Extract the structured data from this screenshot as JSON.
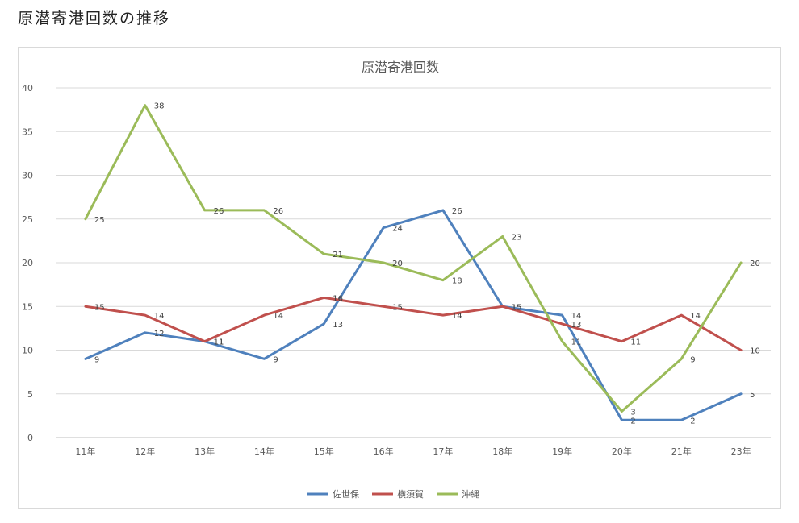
{
  "page": {
    "heading": "原潜寄港回数の推移"
  },
  "chart_data": {
    "type": "line",
    "title": "原潜寄港回数",
    "xlabel": "",
    "ylabel": "",
    "categories": [
      "11年",
      "12年",
      "13年",
      "14年",
      "15年",
      "16年",
      "17年",
      "18年",
      "19年",
      "20年",
      "21年",
      "23年"
    ],
    "ylim": [
      0,
      40
    ],
    "yticks": [
      0,
      5,
      10,
      15,
      20,
      25,
      30,
      35,
      40
    ],
    "grid": true,
    "legend_position": "bottom",
    "series": [
      {
        "name": "佐世保",
        "color": "#4f81bd",
        "values": [
          9,
          12,
          11,
          9,
          13,
          24,
          26,
          15,
          14,
          2,
          2,
          5
        ]
      },
      {
        "name": "横須賀",
        "color": "#c0504d",
        "values": [
          15,
          14,
          11,
          14,
          16,
          15,
          14,
          15,
          13,
          11,
          14,
          10
        ]
      },
      {
        "name": "沖縄",
        "color": "#9bbb59",
        "values": [
          25,
          38,
          26,
          26,
          21,
          20,
          18,
          23,
          11,
          3,
          9,
          20
        ]
      }
    ]
  }
}
